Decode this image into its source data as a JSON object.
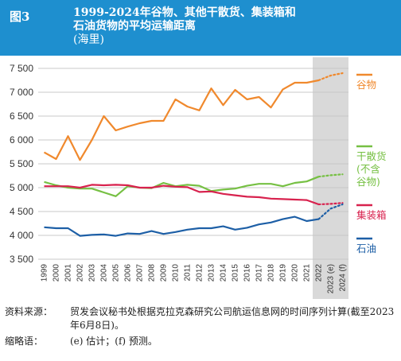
{
  "header": {
    "figure_label": "图3",
    "title_line1": "1999-2024年谷物、其他干散货、集装箱和",
    "title_line2": "石油货物的平均运输距离",
    "unit": "(海里)"
  },
  "colors": {
    "header_bg": "#1e8fcf",
    "forecast_band": "#d9d9d9",
    "grid": "#c8c8c8",
    "grain": "#f0892d",
    "dry_bulk": "#76c043",
    "container": "#d8224e",
    "oil": "#1d5fa6"
  },
  "chart_data": {
    "type": "line",
    "x": [
      "1999",
      "2000",
      "2001",
      "2002",
      "2003",
      "2004",
      "2005",
      "2006",
      "2007",
      "2008",
      "2009",
      "2010",
      "2011",
      "2012",
      "2013",
      "2014",
      "2015",
      "2016",
      "2017",
      "2018",
      "2019",
      "2020",
      "2021",
      "2022",
      "2023 (e)",
      "2024 (f)"
    ],
    "ylim": [
      3500,
      7500
    ],
    "yticks": [
      3500,
      4000,
      4500,
      5000,
      5500,
      6000,
      6500,
      7000,
      7500
    ],
    "ytick_labels": [
      "3 500",
      "4 000",
      "4 500",
      "5 000",
      "5 500",
      "6 000",
      "6 500",
      "7 000",
      "7 500"
    ],
    "forecast_from_index": 23,
    "shaded_categories": [
      "2023 (e)",
      "2024 (f)"
    ],
    "series": [
      {
        "name": "谷物",
        "legend_lines": [
          "谷物"
        ],
        "color_key": "grain",
        "values": [
          5740,
          5600,
          6080,
          5580,
          6000,
          6500,
          6200,
          6280,
          6350,
          6400,
          6400,
          6850,
          6700,
          6620,
          7080,
          6730,
          7050,
          6850,
          6900,
          6680,
          7060,
          7200,
          7200,
          7250,
          7350,
          7400
        ]
      },
      {
        "name": "干散货(不含谷物)",
        "legend_lines": [
          "干散货",
          "(不含",
          "谷物)"
        ],
        "color_key": "dry_bulk",
        "values": [
          5120,
          5050,
          5000,
          4980,
          4980,
          4900,
          4820,
          5030,
          5000,
          4990,
          5100,
          5030,
          5060,
          5040,
          4930,
          4960,
          4980,
          5040,
          5080,
          5080,
          5030,
          5100,
          5130,
          5230,
          5260,
          5280
        ]
      },
      {
        "name": "集装箱",
        "legend_lines": [
          "集装箱"
        ],
        "color_key": "container",
        "values": [
          5030,
          5030,
          5030,
          5000,
          5060,
          5050,
          5060,
          5050,
          5000,
          5000,
          5040,
          5020,
          5010,
          4910,
          4920,
          4870,
          4840,
          4810,
          4800,
          4770,
          4760,
          4750,
          4740,
          4650,
          4660,
          4680
        ]
      },
      {
        "name": "石油",
        "legend_lines": [
          "石油"
        ],
        "color_key": "oil",
        "values": [
          4170,
          4150,
          4150,
          3990,
          4010,
          4020,
          3990,
          4040,
          4030,
          4090,
          4030,
          4070,
          4120,
          4150,
          4150,
          4190,
          4120,
          4160,
          4230,
          4270,
          4340,
          4390,
          4300,
          4340,
          4560,
          4650
        ]
      }
    ]
  },
  "notes": {
    "source_label": "资料来源：",
    "source_text": "贸发会议秘书处根据克拉克森研究公司航运信息网的时间序列计算(截至2023年6月8日)。",
    "abbr_label": "缩略语：",
    "abbr_text": "(e) 估计；(f) 预测。"
  }
}
